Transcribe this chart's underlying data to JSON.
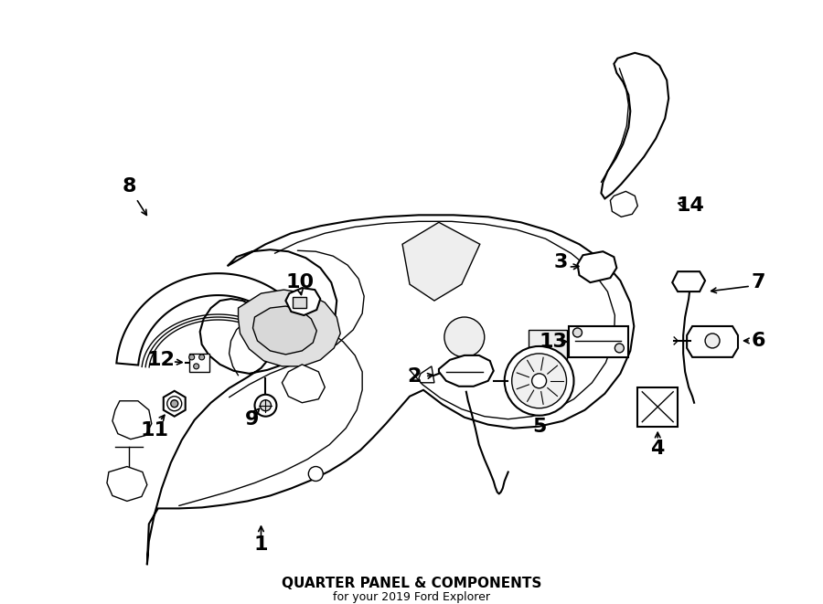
{
  "title": "QUARTER PANEL & COMPONENTS",
  "subtitle": "for your 2019 Ford Explorer",
  "background_color": "#ffffff",
  "line_color": "#000000",
  "text_color": "#000000",
  "label_fontsize": 16,
  "title_fontsize": 11
}
